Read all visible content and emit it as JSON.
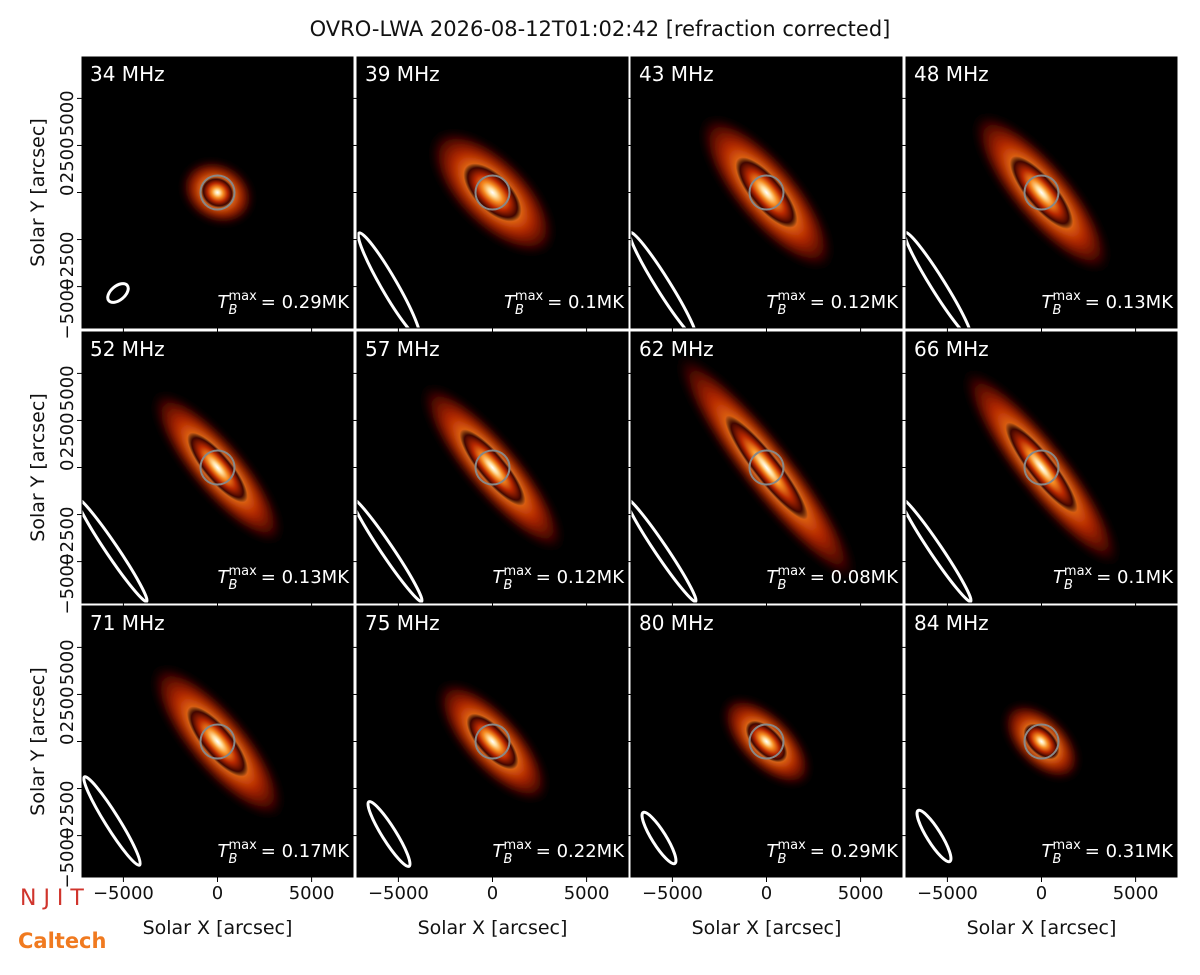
{
  "title": "OVRO-LWA 2026-08-12T01:02:42 [refraction corrected]",
  "xlabel": "Solar X [arcsec]",
  "ylabel": "Solar Y [arcsec]",
  "xlim": [
    -7200,
    7200
  ],
  "ylim": [
    -7200,
    7200
  ],
  "xticks": [
    {
      "value": -5000,
      "label": "−5000"
    },
    0,
    5000
  ],
  "yticks": [
    {
      "value": -5000,
      "label": "−5000"
    },
    {
      "value": -2500,
      "label": "−2500"
    },
    0,
    2500,
    5000
  ],
  "tb_symbol": "T",
  "tb_subscript": "B",
  "tb_superscript": "max",
  "panels": [
    {
      "frequency": "34 MHz",
      "tb_max": "= 0.29MK"
    },
    {
      "frequency": "39 MHz",
      "tb_max": "= 0.1MK"
    },
    {
      "frequency": "43 MHz",
      "tb_max": "= 0.12MK"
    },
    {
      "frequency": "48 MHz",
      "tb_max": "= 0.13MK"
    },
    {
      "frequency": "52 MHz",
      "tb_max": "= 0.13MK"
    },
    {
      "frequency": "57 MHz",
      "tb_max": "= 0.12MK"
    },
    {
      "frequency": "62 MHz",
      "tb_max": "= 0.08MK"
    },
    {
      "frequency": "66 MHz",
      "tb_max": "= 0.1MK"
    },
    {
      "frequency": "71 MHz",
      "tb_max": "= 0.17MK"
    },
    {
      "frequency": "75 MHz",
      "tb_max": "= 0.22MK"
    },
    {
      "frequency": "80 MHz",
      "tb_max": "= 0.29MK"
    },
    {
      "frequency": "84 MHz",
      "tb_max": "= 0.31MK"
    }
  ],
  "logos": [
    "N J I T",
    "Caltech"
  ]
}
